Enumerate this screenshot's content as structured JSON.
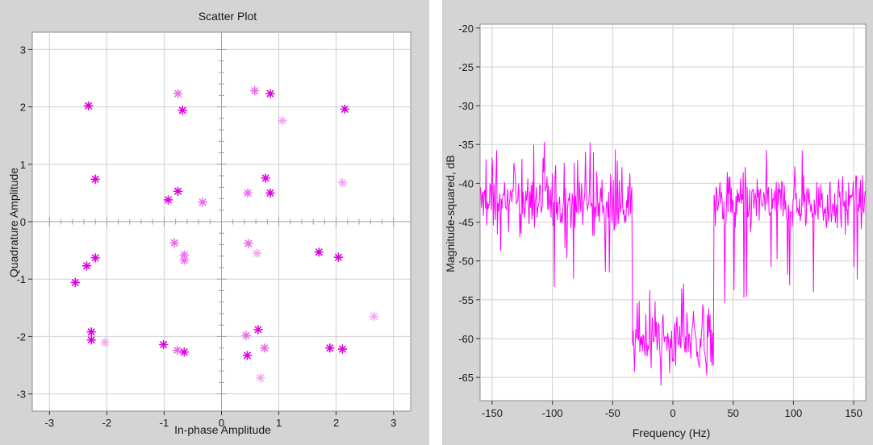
{
  "colors": {
    "panel_bg": "#d4d4d4",
    "plot_bg": "#ffffff",
    "grid": "#cfcfcf",
    "marker_strong": "#e000e0",
    "marker_faint": "#f2a8f2",
    "trace": "#ff00ff"
  },
  "chart_data": [
    {
      "type": "scatter",
      "title": "Scatter Plot",
      "xlabel": "In-phase Amplitude",
      "ylabel": "Quadrature Amplitude",
      "xlim": [
        -3.3,
        3.3
      ],
      "ylim": [
        -3.3,
        3.3
      ],
      "xticks": [
        "-3",
        "-2",
        "-1",
        "0",
        "1",
        "2",
        "3"
      ],
      "yticks": [
        "3",
        "2",
        "1",
        "0",
        "-1",
        "-2",
        "-3"
      ],
      "grid": true,
      "marker": "asterisk",
      "series": [
        {
          "style": "strong",
          "points": [
            [
              -2.32,
              2.02
            ],
            [
              -0.68,
              1.94
            ],
            [
              0.85,
              2.23
            ],
            [
              2.15,
              1.96
            ],
            [
              -2.2,
              0.74
            ],
            [
              -0.93,
              0.38
            ],
            [
              -0.76,
              0.53
            ],
            [
              0.77,
              0.76
            ],
            [
              0.85,
              0.5
            ],
            [
              -2.2,
              -0.63
            ],
            [
              -2.55,
              -1.06
            ],
            [
              -2.35,
              -0.77
            ],
            [
              -2.27,
              -1.92
            ],
            [
              -2.27,
              -2.06
            ],
            [
              -1.01,
              -2.14
            ],
            [
              -0.65,
              -2.27
            ],
            [
              0.45,
              -2.33
            ],
            [
              0.64,
              -1.88
            ],
            [
              1.7,
              -0.53
            ],
            [
              2.04,
              -0.62
            ],
            [
              1.89,
              -2.2
            ],
            [
              2.11,
              -2.22
            ]
          ]
        },
        {
          "style": "medium",
          "points": [
            [
              -0.76,
              2.23
            ],
            [
              0.58,
              2.28
            ],
            [
              -0.33,
              0.34
            ],
            [
              0.46,
              0.5
            ],
            [
              0.47,
              -0.38
            ],
            [
              -0.82,
              -0.37
            ],
            [
              -0.65,
              -0.58
            ],
            [
              -0.65,
              -0.67
            ],
            [
              0.75,
              -2.2
            ],
            [
              -0.77,
              -2.24
            ],
            [
              0.43,
              -1.98
            ]
          ]
        },
        {
          "style": "faint",
          "points": [
            [
              1.06,
              1.76
            ],
            [
              2.11,
              0.68
            ],
            [
              0.62,
              -0.55
            ],
            [
              -2.03,
              -2.1
            ],
            [
              2.66,
              -1.65
            ],
            [
              0.68,
              -2.72
            ]
          ]
        }
      ]
    },
    {
      "type": "line",
      "xlabel": "Frequency (Hz)",
      "ylabel": "Magnitude-squared, dB",
      "xlim": [
        -160,
        160
      ],
      "ylim": [
        -68,
        -19.5
      ],
      "xticks": [
        "-150",
        "-100",
        "-50",
        "0",
        "50",
        "100",
        "150"
      ],
      "yticks": [
        "-20",
        "-25",
        "-30",
        "-35",
        "-40",
        "-45",
        "-50",
        "-55",
        "-60",
        "-65"
      ],
      "grid": true,
      "series": [
        {
          "segments": [
            {
              "x_from": -160,
              "x_to": -34,
              "mean": -42.5,
              "min": -53.5,
              "max": -34.5
            },
            {
              "x_from": -34,
              "x_to": 34,
              "mean": -60,
              "min": -66.5,
              "max": -52
            },
            {
              "x_from": 34,
              "x_to": 160,
              "mean": -42.5,
              "min": -55.5,
              "max": -34
            }
          ]
        }
      ]
    }
  ]
}
